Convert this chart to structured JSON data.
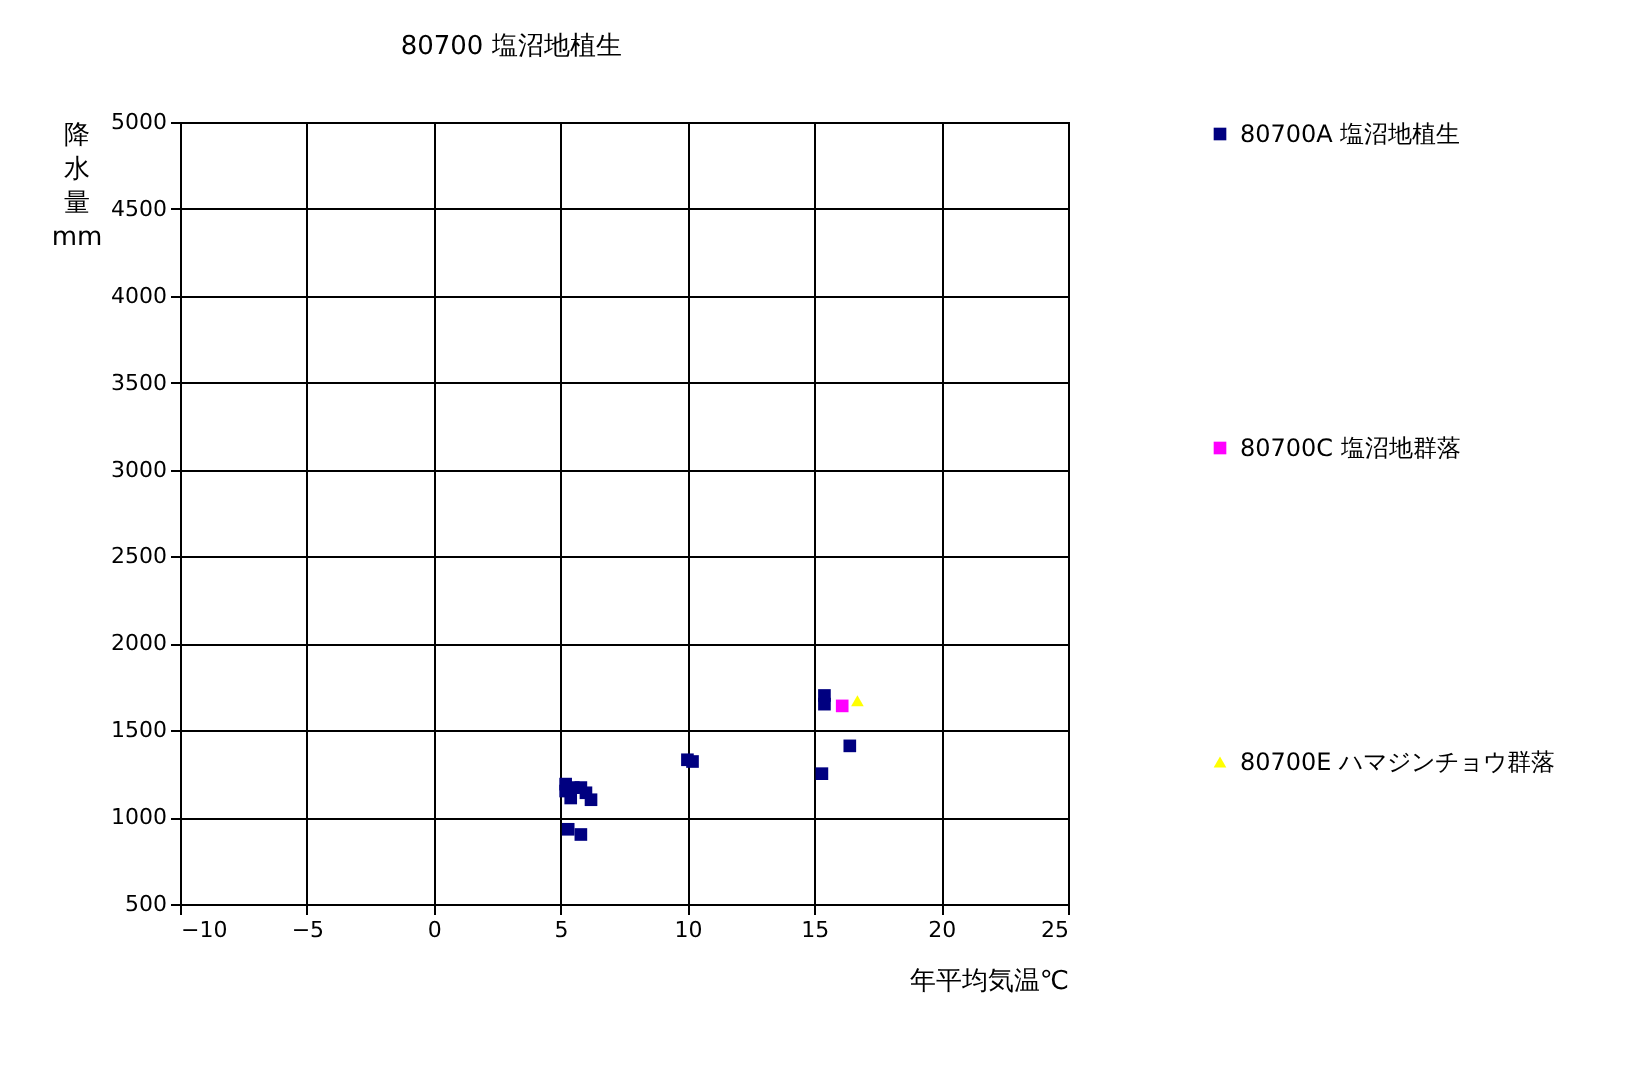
{
  "chart_data": {
    "type": "scatter",
    "title": "80700 塩沼地植生",
    "xlabel": "年平均気温℃",
    "ylabel": "降水量 mm",
    "xlim": [
      -10,
      25
    ],
    "xticks": [
      -10,
      -5,
      0,
      5,
      10,
      15,
      20,
      25
    ],
    "ylim": [
      500,
      5000
    ],
    "yticks": [
      500,
      1000,
      1500,
      2000,
      2500,
      3000,
      3500,
      4000,
      4500,
      5000
    ],
    "grid": true,
    "legend": "right",
    "series": [
      {
        "name": "80700A 塩沼地植生",
        "color": "#000080",
        "marker": "square",
        "x": [
          5.2,
          5.2,
          5.4,
          5.5,
          5.8,
          6.0,
          6.2,
          5.3,
          5.8,
          10.0,
          10.2,
          15.4,
          15.4,
          16.4,
          15.3
        ],
        "values": [
          1190,
          1150,
          1110,
          1170,
          1170,
          1140,
          1100,
          930,
          900,
          1330,
          1320,
          1700,
          1650,
          1410,
          1250
        ]
      },
      {
        "name": "80700C 塩沼地群落",
        "color": "#ff00ff",
        "marker": "square",
        "x": [
          16.1
        ],
        "values": [
          1640
        ]
      },
      {
        "name": "80700E ハマジンチョウ群落",
        "color": "#ffff00",
        "marker": "triangle",
        "x": [
          16.7
        ],
        "values": [
          1670
        ]
      }
    ]
  }
}
